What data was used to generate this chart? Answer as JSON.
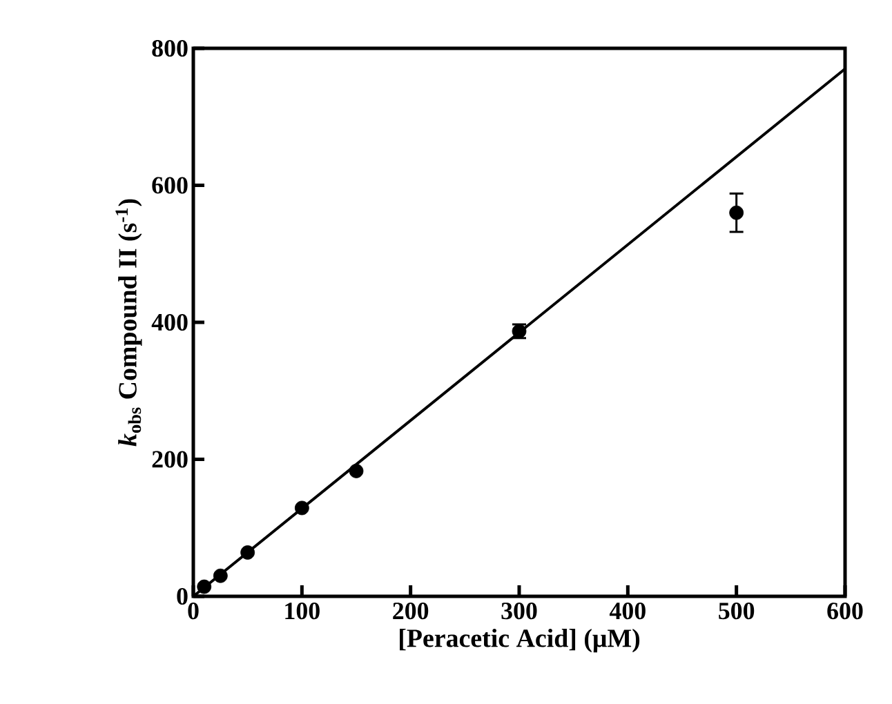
{
  "chart_data": {
    "type": "scatter",
    "xlabel": "[Peracetic Acid] (μM)",
    "ylabel": "*k*$_{obs}$ Compound II (s$^{-1}$)",
    "xlim": [
      0,
      600
    ],
    "ylim": [
      0,
      800
    ],
    "xticks": [
      0,
      100,
      200,
      300,
      400,
      500,
      600
    ],
    "yticks": [
      0,
      200,
      400,
      600,
      800
    ],
    "marker": "circle",
    "series": [
      {
        "color": "#000000",
        "x": [
          10,
          25,
          50,
          100,
          150,
          300,
          500
        ],
        "values": [
          14,
          30,
          64,
          129,
          183,
          387,
          560
        ],
        "errors": [
          null,
          null,
          null,
          null,
          null,
          10,
          28
        ]
      },
      {
        "type": "line",
        "color": "#000000",
        "x": [
          0,
          600
        ],
        "values": [
          0,
          770
        ],
        "marker": "none",
        "line_style": "solid"
      }
    ]
  }
}
